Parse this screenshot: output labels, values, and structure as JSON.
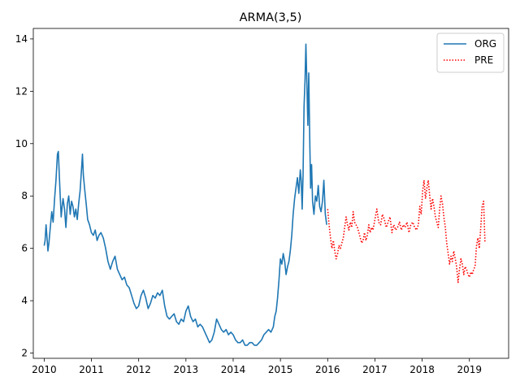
{
  "chart_data": {
    "type": "line",
    "title": "ARMA(3,5)",
    "xlabel": "",
    "ylabel": "",
    "xlim": [
      2009.77,
      2019.83
    ],
    "ylim": [
      1.8,
      14.4
    ],
    "grid": false,
    "legend_position": "top-right",
    "x_ticks": [
      2010,
      2011,
      2012,
      2013,
      2014,
      2015,
      2016,
      2017,
      2018,
      2019
    ],
    "x_tick_labels": [
      "2010",
      "2011",
      "2012",
      "2013",
      "2014",
      "2015",
      "2016",
      "2017",
      "2018",
      "2019"
    ],
    "y_ticks": [
      2,
      4,
      6,
      8,
      10,
      12,
      14
    ],
    "y_tick_labels": [
      "2",
      "4",
      "6",
      "8",
      "10",
      "12",
      "14"
    ],
    "series": [
      {
        "name": "ORG",
        "color": "#1f77b4",
        "style": "solid",
        "x": [
          2010.0,
          2010.02,
          2010.04,
          2010.06,
          2010.08,
          2010.1,
          2010.13,
          2010.16,
          2010.19,
          2010.22,
          2010.25,
          2010.28,
          2010.3,
          2010.32,
          2010.34,
          2010.36,
          2010.38,
          2010.4,
          2010.43,
          2010.46,
          2010.49,
          2010.52,
          2010.55,
          2010.58,
          2010.61,
          2010.64,
          2010.67,
          2010.7,
          2010.73,
          2010.76,
          2010.79,
          2010.81,
          2010.83,
          2010.86,
          2010.89,
          2010.92,
          2010.96,
          2011.0,
          2011.04,
          2011.08,
          2011.12,
          2011.16,
          2011.2,
          2011.25,
          2011.3,
          2011.35,
          2011.4,
          2011.45,
          2011.5,
          2011.55,
          2011.6,
          2011.65,
          2011.7,
          2011.75,
          2011.8,
          2011.85,
          2011.9,
          2011.95,
          2012.0,
          2012.05,
          2012.1,
          2012.15,
          2012.2,
          2012.25,
          2012.3,
          2012.35,
          2012.4,
          2012.45,
          2012.5,
          2012.55,
          2012.6,
          2012.65,
          2012.7,
          2012.75,
          2012.8,
          2012.85,
          2012.9,
          2012.95,
          2013.0,
          2013.05,
          2013.1,
          2013.15,
          2013.2,
          2013.25,
          2013.3,
          2013.35,
          2013.4,
          2013.45,
          2013.5,
          2013.55,
          2013.6,
          2013.65,
          2013.7,
          2013.75,
          2013.8,
          2013.85,
          2013.9,
          2013.95,
          2014.0,
          2014.05,
          2014.1,
          2014.15,
          2014.2,
          2014.25,
          2014.3,
          2014.35,
          2014.4,
          2014.45,
          2014.5,
          2014.55,
          2014.6,
          2014.65,
          2014.7,
          2014.75,
          2014.8,
          2014.85,
          2014.88,
          2014.91,
          2014.94,
          2014.97,
          2015.0,
          2015.03,
          2015.06,
          2015.09,
          2015.12,
          2015.15,
          2015.18,
          2015.21,
          2015.24,
          2015.27,
          2015.3,
          2015.33,
          2015.36,
          2015.39,
          2015.42,
          2015.44,
          2015.46,
          2015.48,
          2015.5,
          2015.52,
          2015.54,
          2015.56,
          2015.58,
          2015.6,
          2015.62,
          2015.64,
          2015.66,
          2015.68,
          2015.71,
          2015.74,
          2015.77,
          2015.8,
          2015.83,
          2015.86,
          2015.89,
          2015.92,
          2015.95,
          2015.98
        ],
        "y": [
          6.1,
          6.3,
          6.9,
          6.4,
          5.9,
          6.2,
          6.8,
          7.4,
          7.0,
          7.9,
          8.6,
          9.6,
          9.7,
          8.8,
          8.0,
          7.2,
          7.6,
          7.9,
          7.5,
          6.8,
          7.7,
          8.0,
          7.3,
          7.8,
          7.6,
          7.2,
          7.5,
          7.1,
          7.7,
          8.2,
          9.0,
          9.6,
          8.8,
          8.2,
          7.7,
          7.1,
          6.9,
          6.6,
          6.5,
          6.7,
          6.3,
          6.5,
          6.6,
          6.4,
          6.0,
          5.5,
          5.2,
          5.5,
          5.7,
          5.2,
          5.0,
          4.8,
          4.9,
          4.6,
          4.5,
          4.2,
          3.9,
          3.7,
          3.8,
          4.2,
          4.4,
          4.1,
          3.7,
          3.9,
          4.2,
          4.1,
          4.3,
          4.2,
          4.4,
          3.8,
          3.4,
          3.3,
          3.4,
          3.5,
          3.2,
          3.1,
          3.3,
          3.2,
          3.6,
          3.8,
          3.4,
          3.2,
          3.3,
          3.0,
          3.1,
          3.0,
          2.8,
          2.6,
          2.4,
          2.5,
          2.8,
          3.3,
          3.1,
          2.9,
          2.8,
          2.9,
          2.7,
          2.8,
          2.7,
          2.5,
          2.4,
          2.4,
          2.5,
          2.3,
          2.3,
          2.4,
          2.4,
          2.3,
          2.3,
          2.4,
          2.5,
          2.7,
          2.8,
          2.9,
          2.8,
          3.0,
          3.4,
          3.6,
          4.1,
          4.8,
          5.6,
          5.4,
          5.8,
          5.5,
          5.0,
          5.3,
          5.5,
          5.9,
          6.5,
          7.3,
          7.9,
          8.3,
          8.7,
          8.1,
          9.0,
          8.6,
          7.5,
          8.8,
          11.4,
          12.4,
          13.8,
          12.3,
          10.7,
          12.7,
          10.2,
          8.3,
          9.2,
          7.8,
          7.3,
          8.0,
          7.8,
          8.4,
          7.6,
          7.4,
          7.8,
          8.6,
          7.3,
          6.9
        ]
      },
      {
        "name": "PRE",
        "color": "#ff0000",
        "style": "dotted",
        "x": [
          2016.0,
          2016.03,
          2016.06,
          2016.09,
          2016.12,
          2016.15,
          2016.18,
          2016.21,
          2016.24,
          2016.27,
          2016.3,
          2016.33,
          2016.36,
          2016.39,
          2016.42,
          2016.45,
          2016.48,
          2016.51,
          2016.54,
          2016.57,
          2016.6,
          2016.63,
          2016.66,
          2016.69,
          2016.72,
          2016.75,
          2016.78,
          2016.81,
          2016.84,
          2016.87,
          2016.9,
          2016.93,
          2016.96,
          2017.0,
          2017.04,
          2017.08,
          2017.12,
          2017.16,
          2017.2,
          2017.24,
          2017.28,
          2017.32,
          2017.36,
          2017.4,
          2017.44,
          2017.48,
          2017.52,
          2017.56,
          2017.6,
          2017.64,
          2017.68,
          2017.72,
          2017.76,
          2017.8,
          2017.84,
          2017.88,
          2017.92,
          2017.95,
          2017.98,
          2018.01,
          2018.04,
          2018.07,
          2018.1,
          2018.13,
          2018.16,
          2018.19,
          2018.22,
          2018.25,
          2018.28,
          2018.31,
          2018.34,
          2018.37,
          2018.4,
          2018.43,
          2018.46,
          2018.49,
          2018.52,
          2018.55,
          2018.58,
          2018.61,
          2018.64,
          2018.67,
          2018.7,
          2018.73,
          2018.76,
          2018.79,
          2018.82,
          2018.85,
          2018.88,
          2018.91,
          2018.94,
          2018.97,
          2019.0,
          2019.03,
          2019.06,
          2019.09,
          2019.12,
          2019.15,
          2019.18,
          2019.21,
          2019.24,
          2019.27,
          2019.3,
          2019.33
        ],
        "y": [
          7.5,
          6.9,
          6.4,
          6.0,
          6.3,
          5.9,
          5.6,
          5.8,
          6.1,
          6.0,
          6.2,
          6.4,
          6.8,
          7.2,
          6.9,
          6.7,
          7.0,
          6.8,
          7.4,
          7.0,
          6.9,
          6.8,
          6.6,
          6.4,
          6.2,
          6.3,
          6.6,
          6.3,
          6.5,
          6.9,
          6.6,
          6.8,
          6.7,
          7.1,
          7.5,
          7.0,
          6.9,
          7.3,
          7.1,
          6.8,
          7.0,
          7.2,
          6.6,
          6.9,
          6.7,
          6.8,
          7.0,
          6.7,
          6.9,
          6.8,
          7.0,
          6.6,
          6.9,
          7.0,
          6.8,
          6.7,
          6.9,
          7.6,
          7.3,
          8.2,
          8.6,
          7.9,
          8.3,
          8.6,
          8.0,
          7.5,
          7.9,
          7.6,
          7.2,
          7.0,
          6.8,
          7.5,
          8.0,
          7.7,
          7.2,
          6.8,
          6.2,
          5.8,
          5.4,
          5.7,
          5.5,
          5.9,
          5.6,
          5.3,
          4.7,
          5.2,
          5.6,
          5.4,
          5.0,
          5.3,
          5.2,
          5.0,
          4.9,
          5.1,
          5.0,
          5.2,
          5.3,
          6.1,
          6.4,
          6.0,
          6.8,
          7.6,
          7.8,
          6.2
        ]
      }
    ]
  }
}
